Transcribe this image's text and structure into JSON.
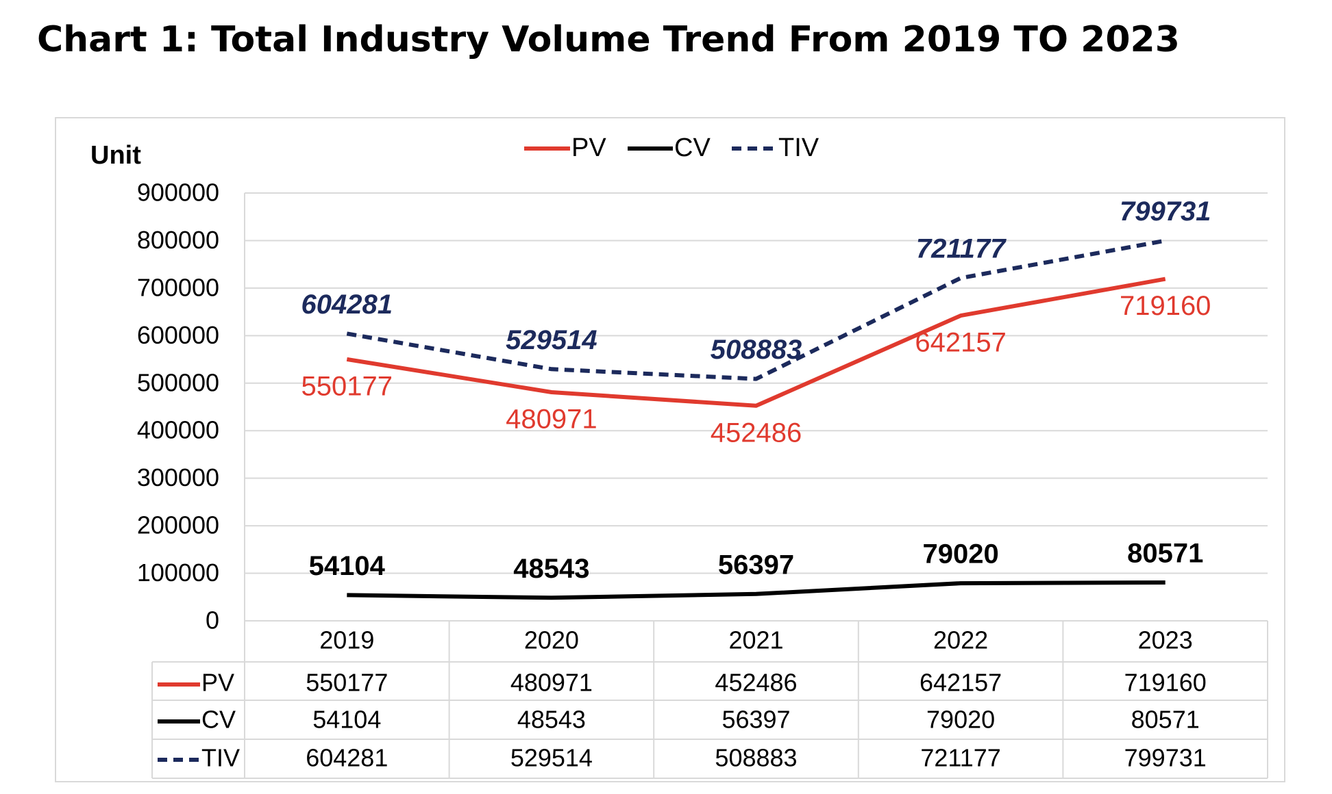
{
  "page_title": "Chart 1: Total Industry Volume Trend From 2019 TO 2023",
  "colors": {
    "PV": "#e03a2e",
    "CV": "#000000",
    "TIV": "#1c2a5c",
    "grid": "#d9d9d9",
    "text": "#000000"
  },
  "chart_data": {
    "type": "line",
    "title": "",
    "ylabel": "Unit",
    "xlabel": "",
    "ylim": [
      0,
      900000
    ],
    "yticks": [
      "0",
      "100000",
      "200000",
      "300000",
      "400000",
      "500000",
      "600000",
      "700000",
      "800000",
      "900000"
    ],
    "categories": [
      "2019",
      "2020",
      "2021",
      "2022",
      "2023"
    ],
    "grid": true,
    "legend_position": "top-center",
    "data_table": true,
    "series": [
      {
        "name": "PV",
        "line_style": "solid",
        "values": [
          550177,
          480971,
          452486,
          642157,
          719160
        ],
        "labels": [
          "550177",
          "480971",
          "452486",
          "642157",
          "719160"
        ]
      },
      {
        "name": "CV",
        "line_style": "solid",
        "values": [
          54104,
          48543,
          56397,
          79020,
          80571
        ],
        "labels": [
          "54104",
          "48543",
          "56397",
          "79020",
          "80571"
        ]
      },
      {
        "name": "TIV",
        "line_style": "dashed",
        "values": [
          604281,
          529514,
          508883,
          721177,
          799731
        ],
        "labels": [
          "604281",
          "529514",
          "508883",
          "721177",
          "799731"
        ]
      }
    ]
  }
}
